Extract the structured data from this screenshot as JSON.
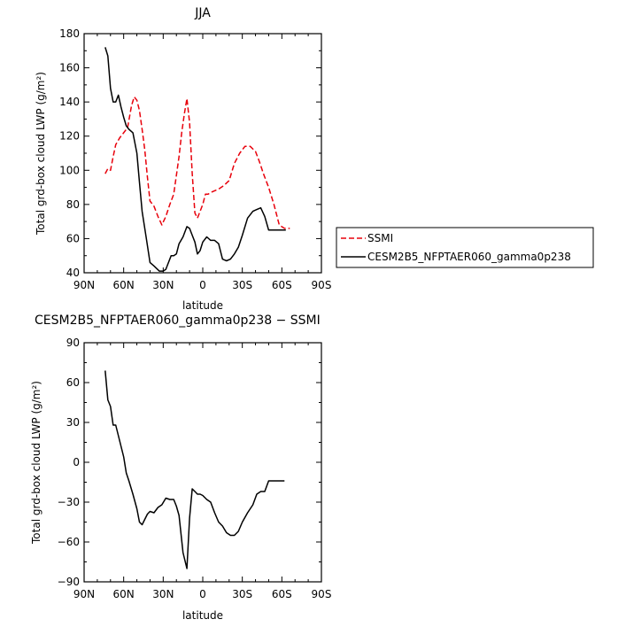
{
  "chart_data": [
    {
      "type": "line",
      "title": "JJA",
      "xlabel": "latitude",
      "ylabel": "Total grd-box cloud LWP (g/m²)",
      "xlim": [
        90,
        -90
      ],
      "ylim": [
        40,
        180
      ],
      "xticks": [
        {
          "value": 90,
          "label": "90N"
        },
        {
          "value": 60,
          "label": "60N"
        },
        {
          "value": 30,
          "label": "30N"
        },
        {
          "value": 0,
          "label": "0"
        },
        {
          "value": -30,
          "label": "30S"
        },
        {
          "value": -60,
          "label": "60S"
        },
        {
          "value": -90,
          "label": "90S"
        }
      ],
      "yticks": [
        {
          "value": 40,
          "label": "40"
        },
        {
          "value": 60,
          "label": "60"
        },
        {
          "value": 80,
          "label": "80"
        },
        {
          "value": 100,
          "label": "100"
        },
        {
          "value": 120,
          "label": "120"
        },
        {
          "value": 140,
          "label": "140"
        },
        {
          "value": 160,
          "label": "160"
        },
        {
          "value": 180,
          "label": "180"
        }
      ],
      "legend_position": "outside-right",
      "series": [
        {
          "name": "SSMI",
          "color": "#e8000b",
          "dash": "dashed",
          "x": [
            74,
            72,
            70,
            68,
            66,
            63,
            60,
            57,
            54,
            52,
            50,
            48,
            46,
            44,
            42,
            40,
            37,
            34,
            31,
            28,
            25,
            22,
            18,
            16,
            14,
            12,
            10,
            8,
            6,
            4,
            2,
            0,
            -2,
            -4,
            -6,
            -9,
            -12,
            -16,
            -20,
            -24,
            -28,
            -32,
            -36,
            -40,
            -43,
            -46,
            -50,
            -54,
            -58,
            -62,
            -64,
            -66
          ],
          "y": [
            98,
            101,
            100,
            108,
            115,
            119,
            122,
            125,
            138,
            143,
            141,
            135,
            124,
            112,
            96,
            82,
            79,
            73,
            68,
            73,
            80,
            86,
            108,
            122,
            133,
            142,
            128,
            98,
            75,
            72,
            76,
            80,
            86,
            86,
            87,
            88,
            89,
            91,
            94,
            104,
            110,
            114,
            114,
            111,
            105,
            98,
            90,
            80,
            68,
            66,
            66,
            66
          ]
        },
        {
          "name": "CESM2B5_NFPTAER060_gamma0p238",
          "color": "#000000",
          "dash": "solid",
          "x": [
            74,
            72,
            70,
            68,
            66,
            64,
            62,
            60,
            58,
            56,
            53,
            50,
            48,
            46,
            43,
            40,
            37,
            33,
            30,
            28,
            26,
            24,
            22,
            20,
            18,
            15,
            12,
            10,
            8,
            6,
            4,
            2,
            0,
            -3,
            -6,
            -9,
            -12,
            -15,
            -18,
            -21,
            -24,
            -27,
            -30,
            -34,
            -38,
            -41,
            -44,
            -47,
            -50,
            -54,
            -57,
            -60,
            -63
          ],
          "y": [
            172,
            167,
            148,
            140,
            140,
            144,
            137,
            131,
            126,
            124,
            122,
            110,
            93,
            76,
            61,
            46,
            44,
            41,
            41,
            42,
            46,
            50,
            50,
            51,
            57,
            61,
            67,
            66,
            62,
            58,
            51,
            53,
            58,
            61,
            59,
            59,
            57,
            48,
            47,
            48,
            51,
            55,
            62,
            72,
            76,
            77,
            78,
            73,
            65,
            65,
            65,
            65,
            65
          ]
        }
      ]
    },
    {
      "type": "line",
      "title": "CESM2B5_NFPTAER060_gamma0p238 − SSMI",
      "xlabel": "latitude",
      "ylabel": "Total grd-box cloud LWP (g/m²)",
      "xlim": [
        90,
        -90
      ],
      "ylim": [
        -90,
        90
      ],
      "xticks": [
        {
          "value": 90,
          "label": "90N"
        },
        {
          "value": 60,
          "label": "60N"
        },
        {
          "value": 30,
          "label": "30N"
        },
        {
          "value": 0,
          "label": "0"
        },
        {
          "value": -30,
          "label": "30S"
        },
        {
          "value": -60,
          "label": "60S"
        },
        {
          "value": -90,
          "label": "90S"
        }
      ],
      "yticks": [
        {
          "value": 90,
          "label": "90"
        },
        {
          "value": 60,
          "label": "60"
        },
        {
          "value": 30,
          "label": "30"
        },
        {
          "value": 0,
          "label": "0"
        },
        {
          "value": -30,
          "label": "−30"
        },
        {
          "value": -60,
          "label": "−60"
        },
        {
          "value": -90,
          "label": "−90"
        }
      ],
      "series": [
        {
          "name": "",
          "color": "#000000",
          "dash": "solid",
          "x": [
            74,
            72,
            70,
            68,
            66,
            64,
            62,
            60,
            58,
            56,
            53,
            50,
            48,
            46,
            44,
            42,
            40,
            37,
            34,
            31,
            28,
            25,
            22,
            20,
            18,
            15,
            12,
            10,
            8,
            6,
            4,
            2,
            0,
            -3,
            -6,
            -9,
            -12,
            -15,
            -18,
            -21,
            -24,
            -27,
            -30,
            -34,
            -38,
            -41,
            -44,
            -47,
            -50,
            -54,
            -57,
            -60,
            -62
          ],
          "y": [
            69,
            47,
            42,
            28,
            28,
            20,
            12,
            4,
            -8,
            -14,
            -24,
            -35,
            -45,
            -47,
            -43,
            -39,
            -37,
            -38,
            -34,
            -32,
            -27,
            -28,
            -28,
            -33,
            -40,
            -68,
            -80,
            -42,
            -20,
            -22,
            -24,
            -24,
            -25,
            -28,
            -30,
            -38,
            -45,
            -48,
            -53,
            -55,
            -55,
            -52,
            -45,
            -38,
            -32,
            -24,
            -22,
            -22,
            -14,
            -14,
            -14,
            -14,
            -14
          ]
        }
      ]
    }
  ]
}
